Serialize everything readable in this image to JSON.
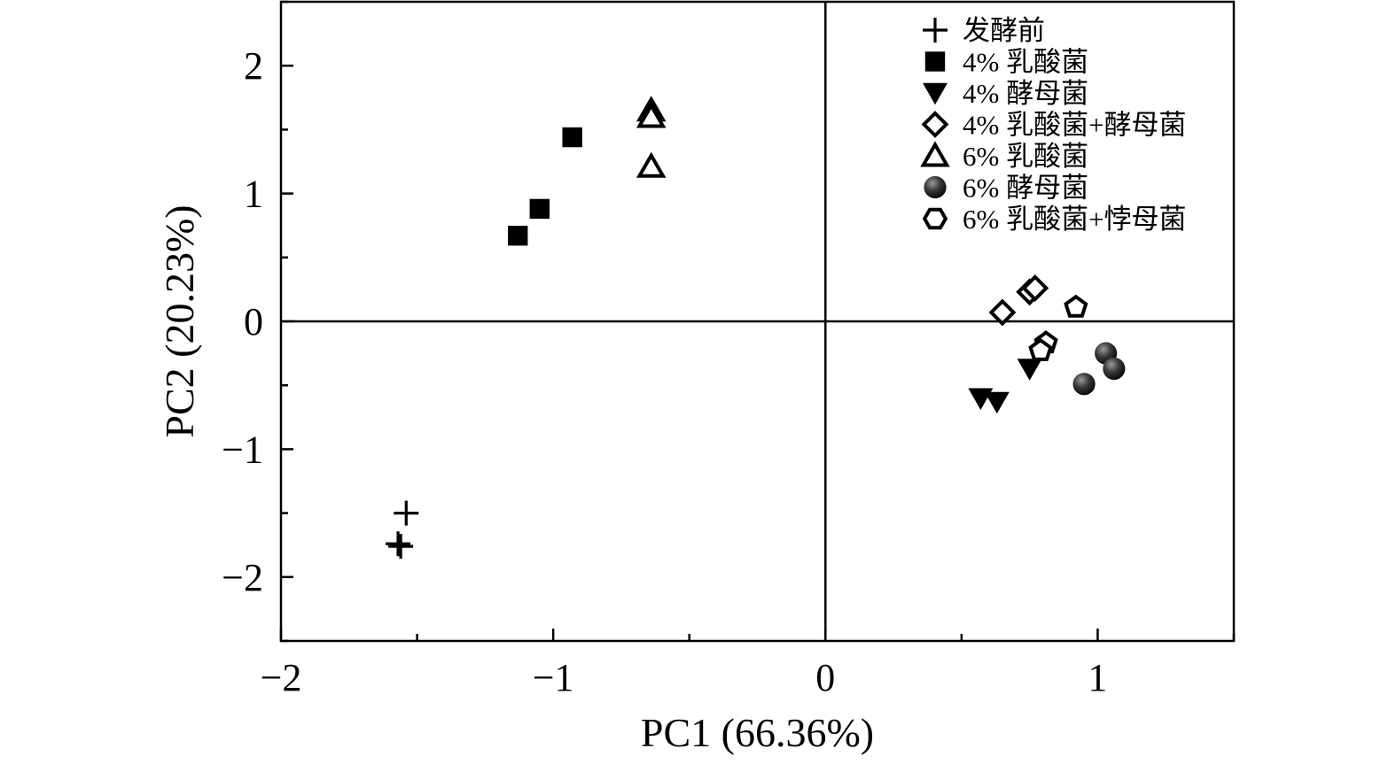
{
  "chart_data": {
    "type": "scatter",
    "xlabel": "PC1 (66.36%)",
    "ylabel": "PC2 (20.23%)",
    "xlim": [
      -2,
      1.5
    ],
    "ylim": [
      -2.5,
      2.5
    ],
    "x_ticks": [
      {
        "value": -2,
        "label": "−2"
      },
      {
        "value": -1,
        "label": "−1"
      },
      {
        "value": 0,
        "label": "0"
      },
      {
        "value": 1,
        "label": "1"
      }
    ],
    "y_ticks": [
      {
        "value": 2,
        "label": "2"
      },
      {
        "value": 1,
        "label": "1"
      },
      {
        "value": 0,
        "label": "0"
      },
      {
        "value": -1,
        "label": "−1"
      },
      {
        "value": -2,
        "label": "−2"
      }
    ],
    "reference_lines": {
      "x": 0,
      "y": 0
    },
    "grid": false,
    "legend_position": "top-right",
    "series": [
      {
        "name": "发酵前",
        "marker": "plus",
        "color": "#000000",
        "points": [
          [
            -1.54,
            -1.5
          ],
          [
            -1.57,
            -1.74
          ],
          [
            -1.56,
            -1.76
          ]
        ]
      },
      {
        "name": "4% 乳酸菌",
        "marker": "square",
        "color": "#000000",
        "points": [
          [
            -1.13,
            0.67
          ],
          [
            -1.05,
            0.88
          ],
          [
            -0.93,
            1.44
          ]
        ]
      },
      {
        "name": "4% 酵母菌",
        "marker": "triangle-down",
        "color": "#000000",
        "points": [
          [
            0.57,
            -0.6
          ],
          [
            0.63,
            -0.63
          ],
          [
            0.75,
            -0.37
          ]
        ]
      },
      {
        "name": "4% 乳酸菌+酵母菌",
        "marker": "diamond-open",
        "color": "#000000",
        "points": [
          [
            0.65,
            0.07
          ],
          [
            0.75,
            0.23
          ],
          [
            0.77,
            0.26
          ]
        ]
      },
      {
        "name": "6% 乳酸菌",
        "marker": "triangle-up-open",
        "color": "#000000",
        "points": [
          [
            -0.64,
            1.65
          ],
          [
            -0.64,
            1.6
          ],
          [
            -0.64,
            1.21
          ]
        ]
      },
      {
        "name": "6% 酵母菌",
        "marker": "sphere",
        "color": "#000000",
        "points": [
          [
            0.95,
            -0.49
          ],
          [
            1.03,
            -0.25
          ],
          [
            1.06,
            -0.37
          ]
        ]
      },
      {
        "name": "6% 乳酸菌+悖母菌",
        "marker": "pentagon-open",
        "color": "#000000",
        "points": [
          [
            0.92,
            0.11
          ],
          [
            0.81,
            -0.17
          ],
          [
            0.79,
            -0.23
          ]
        ]
      }
    ]
  }
}
